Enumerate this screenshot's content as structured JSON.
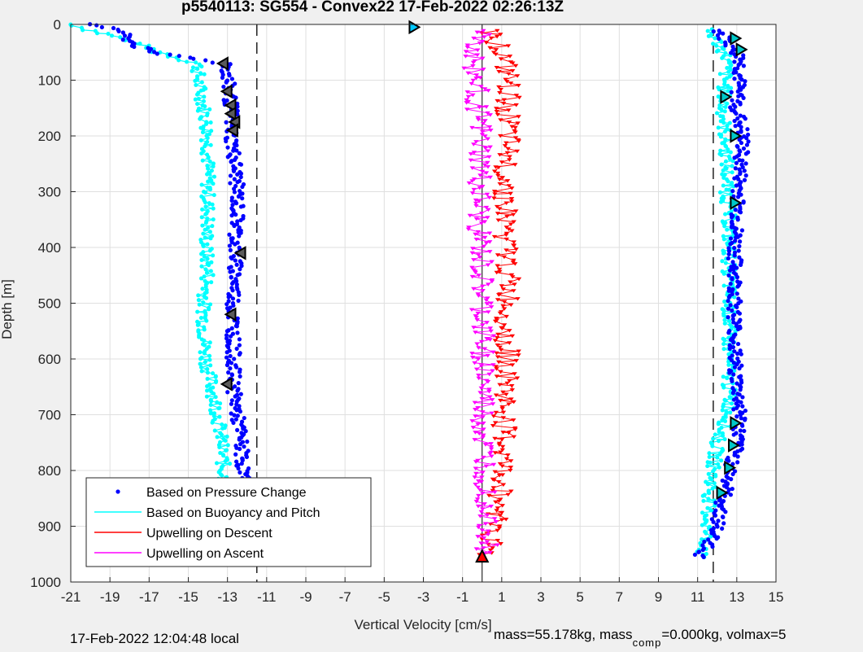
{
  "chart_data": {
    "type": "scatter",
    "title": "p5540113: SG554 - Convex22 17-Feb-2022 02:26:13Z",
    "xlabel": "Vertical Velocity [cm/s]",
    "ylabel": "Depth [m]",
    "xlim": [
      -21,
      15
    ],
    "ylim": [
      0,
      1000
    ],
    "y_reversed": true,
    "grid": true,
    "xticks": [
      -21,
      -19,
      -17,
      -15,
      -13,
      -11,
      -9,
      -7,
      -5,
      -3,
      -1,
      1,
      3,
      5,
      7,
      9,
      11,
      13,
      15
    ],
    "yticks": [
      0,
      100,
      200,
      300,
      400,
      500,
      600,
      700,
      800,
      900,
      1000
    ],
    "reference_lines": {
      "dashed_x": [
        -11.5,
        11.8
      ],
      "solid_x": [
        0
      ]
    },
    "legend_position": "bottom-left",
    "series": [
      {
        "name": "Based on Pressure Change",
        "color": "#0000ff",
        "marker": "dot",
        "descent": {
          "depth": [
            0,
            10,
            30,
            50,
            70,
            100,
            150,
            200,
            250,
            300,
            350,
            400,
            450,
            500,
            550,
            600,
            650,
            700,
            750,
            800,
            850,
            900,
            940,
            955
          ],
          "velocity": [
            -20,
            -18.5,
            -18,
            -17,
            -13,
            -13,
            -12.8,
            -12.8,
            -12.6,
            -12.5,
            -12.5,
            -12.6,
            -12.6,
            -12.7,
            -12.7,
            -12.7,
            -12.7,
            -12.5,
            -12.3,
            -12.2,
            -12.2,
            -12.3,
            -12.5,
            -8
          ]
        },
        "ascent": {
          "depth": [
            955,
            940,
            900,
            850,
            800,
            750,
            700,
            650,
            600,
            550,
            500,
            450,
            400,
            350,
            300,
            250,
            200,
            150,
            100,
            60,
            30,
            10
          ],
          "velocity": [
            11,
            11.5,
            12,
            12.3,
            12.7,
            13,
            13.2,
            13,
            12.9,
            12.9,
            12.9,
            12.9,
            12.9,
            13,
            13.1,
            13.2,
            13.3,
            13,
            13.1,
            13.2,
            12.5,
            12
          ]
        }
      },
      {
        "name": "Based on Buoyancy and Pitch",
        "color": "#00ffff",
        "marker": "line-dot",
        "descent": {
          "depth": [
            0,
            10,
            30,
            50,
            70,
            100,
            150,
            200,
            250,
            300,
            350,
            400,
            450,
            500,
            550,
            600,
            650,
            700,
            750,
            800,
            850,
            900,
            940,
            955
          ],
          "velocity": [
            -21,
            -20,
            -18,
            -16.5,
            -14.5,
            -14.5,
            -14.2,
            -14,
            -14,
            -14,
            -14,
            -14.1,
            -14,
            -14.2,
            -14.2,
            -14.1,
            -13.8,
            -13.5,
            -13.3,
            -13.2,
            -13.1,
            -13.3,
            -13.5,
            -8
          ]
        },
        "ascent": {
          "depth": [
            955,
            940,
            900,
            850,
            800,
            750,
            700,
            650,
            600,
            550,
            500,
            450,
            400,
            350,
            300,
            250,
            200,
            150,
            100,
            60,
            30,
            10
          ],
          "velocity": [
            11,
            11.4,
            11.5,
            11.6,
            11.8,
            12,
            12.6,
            12.6,
            12.6,
            12.6,
            12.6,
            12.6,
            12.6,
            12.6,
            12.5,
            12.5,
            12.4,
            12.3,
            12.4,
            12.5,
            12,
            11.5
          ]
        }
      },
      {
        "name": "Upwelling on Descent",
        "color": "#ff0000",
        "marker": "triangle-down",
        "depth": [
          10,
          50,
          100,
          150,
          200,
          250,
          300,
          350,
          400,
          450,
          500,
          550,
          600,
          650,
          700,
          750,
          800,
          850,
          900,
          950
        ],
        "velocity": [
          0.5,
          1,
          1.3,
          1.3,
          1.3,
          1.2,
          1.2,
          1.2,
          1.2,
          1.3,
          1.3,
          1.2,
          1.3,
          1.2,
          1.1,
          1.1,
          1,
          0.9,
          0.8,
          0.2
        ]
      },
      {
        "name": "Upwelling on Ascent",
        "color": "#ff00ff",
        "marker": "triangle-down",
        "depth": [
          10,
          50,
          100,
          150,
          200,
          250,
          300,
          350,
          400,
          450,
          500,
          550,
          600,
          650,
          700,
          750,
          800,
          850,
          900,
          950
        ],
        "velocity": [
          0.2,
          -0.5,
          -0.3,
          -0.2,
          -0.1,
          -0.1,
          -0.2,
          -0.2,
          -0.1,
          -0.1,
          0,
          0,
          0.1,
          0.1,
          0,
          0,
          0.2,
          0.3,
          0.4,
          0.2
        ]
      }
    ],
    "annotation_markers": {
      "descent_depth": [
        70,
        120,
        145,
        160,
        175,
        190,
        410,
        520,
        645,
        840,
        880,
        950
      ],
      "descent_velocity": [
        -13.2,
        -13,
        -12.8,
        -12.8,
        -12.6,
        -12.7,
        -12.3,
        -12.8,
        -13,
        -12.3,
        -12.4,
        -12.5
      ],
      "ascent_depth": [
        25,
        45,
        130,
        200,
        320,
        715,
        755,
        795,
        840
      ],
      "ascent_velocity": [
        12.9,
        13.2,
        12.4,
        12.9,
        12.9,
        12.9,
        12.8,
        12.6,
        12.2
      ]
    },
    "start_marker": {
      "depth": 5,
      "velocity": -3.5
    },
    "end_marker": {
      "depth": 955,
      "velocity": 0
    }
  },
  "footer": {
    "left": "17-Feb-2022 12:04:48 local",
    "right_main": "mass=55.178kg, mass",
    "right_sub": "comp",
    "right_tail": "=0.000kg, volmax=5"
  }
}
